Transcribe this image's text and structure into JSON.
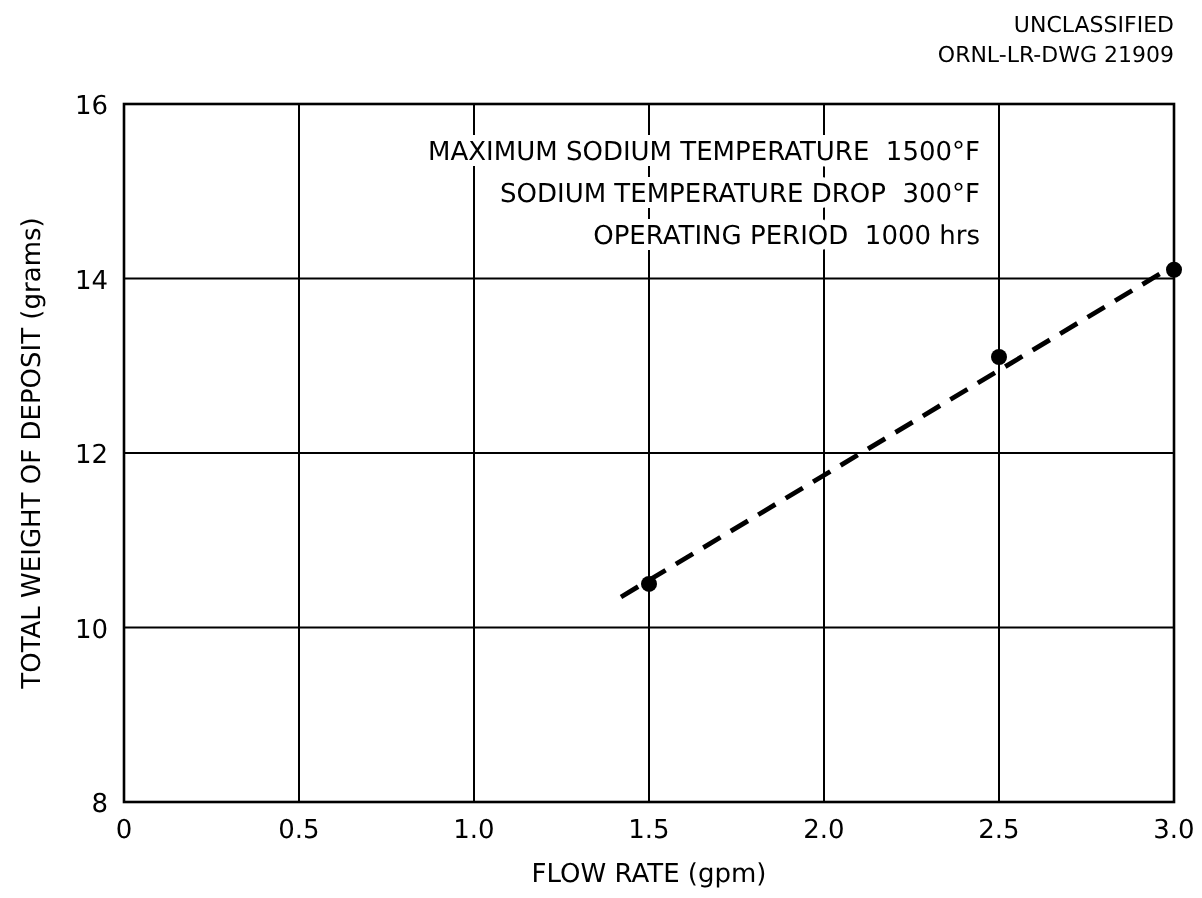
{
  "chart_data": {
    "type": "scatter",
    "xlabel": "FLOW RATE (gpm)",
    "ylabel": "TOTAL WEIGHT OF DEPOSIT (grams)",
    "xlim": [
      0,
      3
    ],
    "xticks": [
      0,
      0.5,
      {
        "value": 1,
        "label": "1.0"
      },
      1.5,
      {
        "value": 2,
        "label": "2.0"
      },
      2.5,
      {
        "value": 3,
        "label": "3.0"
      }
    ],
    "ylim": [
      8,
      16
    ],
    "yticks": [
      8,
      10,
      12,
      14,
      16
    ],
    "grid": true,
    "marker": "circle",
    "series": [
      {
        "color": "#000000",
        "x": [
          1.5,
          2.5,
          3.0
        ],
        "values": [
          10.5,
          13.1,
          14.1
        ]
      },
      {
        "type": "line",
        "color": "#000000",
        "line_style": "dashed",
        "marker": "none",
        "x": [
          1.42,
          3.0
        ],
        "values": [
          10.35,
          14.15
        ]
      }
    ],
    "annotations": [
      "UNCLASSIFIED",
      "ORNL-LR-DWG 21909",
      "MAXIMUM SODIUM TEMPERATURE  1500°F",
      "SODIUM TEMPERATURE DROP  300°F",
      "OPERATING PERIOD  1000 hrs"
    ]
  }
}
